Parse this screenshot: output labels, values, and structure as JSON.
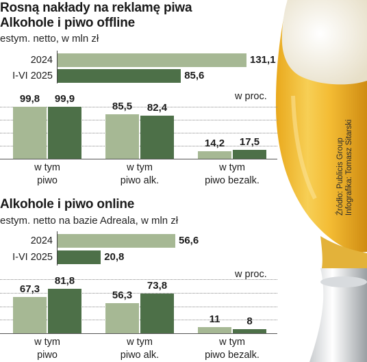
{
  "colors": {
    "light": "#a6b894",
    "dark": "#4d7048",
    "text": "#1a1a1a",
    "beer": "#f0b42a",
    "foam": "#f7f4ea"
  },
  "headline": "Rosną nakłady na reklamę piwa",
  "chart_data": [
    {
      "type": "bar",
      "title": "Alkohole i piwo offline",
      "subtitle": "estym. netto, w mln zł",
      "categories": [
        "2024",
        "I-VI 2025"
      ],
      "values": [
        131.1,
        85.6
      ],
      "value_labels": [
        "131,1",
        "85,6"
      ]
    },
    {
      "type": "bar",
      "title": "",
      "unit": "w proc.",
      "categories": [
        "w tym\npiwo",
        "w tym\npiwo alk.",
        "w tym\npiwo bezalk."
      ],
      "series": [
        {
          "values": [
            99.8,
            85.5,
            14.2
          ],
          "value_labels": [
            "99,8",
            "85,5",
            "14,2"
          ]
        },
        {
          "values": [
            99.9,
            82.4,
            17.5
          ],
          "value_labels": [
            "99,9",
            "82,4",
            "17,5"
          ]
        }
      ],
      "ylim": [
        0,
        100
      ]
    },
    {
      "type": "bar",
      "title": "Alkohole i piwo online",
      "subtitle": "estym. netto na bazie Adreala, w mln zł",
      "categories": [
        "2024",
        "I-VI 2025"
      ],
      "values": [
        56.6,
        20.8
      ],
      "value_labels": [
        "56,6",
        "20,8"
      ]
    },
    {
      "type": "bar",
      "title": "",
      "unit": "w proc.",
      "categories": [
        "w tym\npiwo",
        "w tym\npiwo alk.",
        "w tym\npiwo bezalk."
      ],
      "series": [
        {
          "values": [
            67.3,
            56.3,
            11
          ],
          "value_labels": [
            "67,3",
            "56,3",
            "11"
          ]
        },
        {
          "values": [
            81.8,
            73.8,
            8
          ],
          "value_labels": [
            "81,8",
            "73,8",
            "8"
          ]
        }
      ],
      "ylim": [
        0,
        100
      ]
    }
  ],
  "source": [
    "Źródło: Publicis Group",
    "Infografika: Tomasz Sitarski"
  ]
}
